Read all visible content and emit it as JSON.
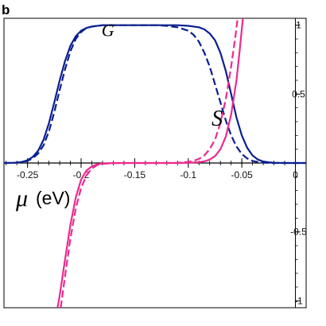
{
  "panel_label": "b",
  "chart_data": {
    "type": "line",
    "xlabel_symbol": "μ",
    "xlabel_unit": "(eV)",
    "xlim": [
      -0.272,
      0.01
    ],
    "ylim": [
      -1.05,
      1.05
    ],
    "x_ticks": [
      {
        "value": -0.25,
        "label": "-0.25"
      },
      {
        "value": -0.2,
        "label": "-0.2"
      },
      {
        "value": -0.15,
        "label": "-0.15"
      },
      {
        "value": -0.1,
        "label": "-0.1"
      },
      {
        "value": -0.05,
        "label": "-0.05"
      },
      {
        "value": 0,
        "label": "0"
      }
    ],
    "y_ticks": [
      {
        "value": 1,
        "label": "1"
      },
      {
        "value": 0.5,
        "label": "0.5"
      },
      {
        "value": -0.5,
        "label": "-0.5"
      },
      {
        "value": -1,
        "label": "-1"
      }
    ],
    "annotations": [
      {
        "text": "G",
        "x": -0.175,
        "y": 0.92,
        "size": 22
      },
      {
        "text": "S",
        "x": -0.073,
        "y": 0.27,
        "size": 28
      }
    ],
    "series": [
      {
        "key": "G_solid",
        "color": "#0a1f8f",
        "dash": "",
        "x": [
          -0.272,
          -0.265,
          -0.26,
          -0.255,
          -0.25,
          -0.245,
          -0.24,
          -0.235,
          -0.23,
          -0.225,
          -0.22,
          -0.215,
          -0.21,
          -0.205,
          -0.2,
          -0.195,
          -0.19,
          -0.18,
          -0.17,
          -0.16,
          -0.15,
          -0.14,
          -0.13,
          -0.12,
          -0.11,
          -0.1,
          -0.09,
          -0.085,
          -0.08,
          -0.075,
          -0.07,
          -0.065,
          -0.06,
          -0.055,
          -0.05,
          -0.045,
          -0.04,
          -0.035,
          -0.03,
          -0.025,
          -0.02,
          -0.015,
          -0.01,
          0,
          0.01
        ],
        "y": [
          0,
          0.001,
          0.003,
          0.008,
          0.02,
          0.045,
          0.09,
          0.17,
          0.29,
          0.44,
          0.6,
          0.74,
          0.85,
          0.92,
          0.96,
          0.98,
          0.99,
          1,
          1,
          1,
          1,
          1,
          1,
          1,
          1,
          0.995,
          0.985,
          0.97,
          0.94,
          0.89,
          0.8,
          0.67,
          0.5,
          0.33,
          0.2,
          0.11,
          0.055,
          0.025,
          0.011,
          0.005,
          0.002,
          0.001,
          0,
          0,
          0
        ]
      },
      {
        "key": "G_dashed",
        "color": "#0a1f8f",
        "dash": "9,4",
        "x": [
          -0.272,
          -0.265,
          -0.26,
          -0.255,
          -0.25,
          -0.245,
          -0.24,
          -0.235,
          -0.23,
          -0.225,
          -0.22,
          -0.215,
          -0.21,
          -0.205,
          -0.2,
          -0.195,
          -0.19,
          -0.18,
          -0.17,
          -0.16,
          -0.15,
          -0.14,
          -0.13,
          -0.12,
          -0.11,
          -0.1,
          -0.095,
          -0.09,
          -0.085,
          -0.08,
          -0.075,
          -0.07,
          -0.065,
          -0.06,
          -0.055,
          -0.05,
          -0.045,
          -0.04,
          -0.035,
          -0.03,
          -0.025,
          -0.02,
          -0.015,
          -0.01,
          0,
          0.01
        ],
        "y": [
          0,
          0.001,
          0.003,
          0.007,
          0.015,
          0.035,
          0.07,
          0.13,
          0.23,
          0.37,
          0.53,
          0.68,
          0.81,
          0.9,
          0.95,
          0.98,
          0.99,
          1,
          1,
          1,
          1,
          1,
          1,
          0.995,
          0.985,
          0.96,
          0.93,
          0.88,
          0.8,
          0.7,
          0.57,
          0.44,
          0.31,
          0.2,
          0.12,
          0.065,
          0.033,
          0.015,
          0.007,
          0.003,
          0.001,
          0,
          0,
          0,
          0,
          0
        ]
      },
      {
        "key": "S_solid",
        "color": "#ee2a8f",
        "dash": "",
        "x": [
          -0.222,
          -0.22,
          -0.215,
          -0.21,
          -0.205,
          -0.2,
          -0.195,
          -0.19,
          -0.185,
          -0.18,
          -0.17,
          -0.16,
          -0.15,
          -0.14,
          -0.13,
          -0.12,
          -0.11,
          -0.1,
          -0.09,
          -0.085,
          -0.08,
          -0.075,
          -0.07,
          -0.065,
          -0.06,
          -0.055,
          -0.052,
          -0.049
        ],
        "y": [
          -1.05,
          -0.96,
          -0.7,
          -0.45,
          -0.25,
          -0.12,
          -0.055,
          -0.025,
          -0.01,
          -0.004,
          0,
          0,
          0,
          0,
          0,
          0,
          0,
          0.002,
          0.006,
          0.012,
          0.025,
          0.05,
          0.1,
          0.19,
          0.35,
          0.6,
          0.82,
          1.05
        ]
      },
      {
        "key": "S_dashed",
        "color": "#ee2a8f",
        "dash": "9,4",
        "x": [
          -0.219,
          -0.215,
          -0.21,
          -0.205,
          -0.2,
          -0.195,
          -0.19,
          -0.185,
          -0.18,
          -0.17,
          -0.16,
          -0.15,
          -0.14,
          -0.13,
          -0.12,
          -0.11,
          -0.1,
          -0.095,
          -0.09,
          -0.085,
          -0.08,
          -0.075,
          -0.07,
          -0.065,
          -0.06,
          -0.056,
          -0.054
        ],
        "y": [
          -1.05,
          -0.82,
          -0.55,
          -0.33,
          -0.18,
          -0.09,
          -0.04,
          -0.015,
          -0.006,
          -0.001,
          0,
          0,
          0,
          0,
          0,
          0.002,
          0.008,
          0.015,
          0.03,
          0.055,
          0.1,
          0.17,
          0.29,
          0.46,
          0.7,
          0.92,
          1.05
        ]
      }
    ]
  }
}
